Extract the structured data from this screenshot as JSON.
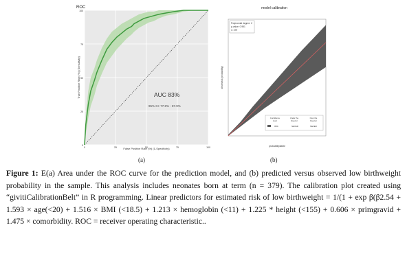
{
  "panel_a": {
    "label": "(a)",
    "title": "ROC",
    "xlabel": "False Positive Rate (%)     (1-Specificity)",
    "ylabel": "True Positive Rate (%)     (Sensitivity)",
    "auc_text": "AUC 83%",
    "ci_text": "95% CI: 77.8% - 87.9%",
    "colors": {
      "curve": "#3f9b3f",
      "band": "#b9dcae",
      "background": "#e9e9e9"
    }
  },
  "panel_b": {
    "label": "(b)",
    "title": "model calibration",
    "legend_lines": [
      "Polynomial degree: 2",
      "p-value: 0.951",
      "n: 379"
    ],
    "xlabel": "probabilityliable",
    "ylabel": "observed (probability)",
    "table_headers": [
      "Confidence\nlevel",
      "Under the\nbisector",
      "Over the\nbisector"
    ],
    "table_row": [
      "80%",
      "NEVER",
      "NEVER"
    ],
    "colors": {
      "belt": "#5a5a5a",
      "bisector": "#e06060"
    }
  },
  "chart_data": [
    {
      "type": "line",
      "title": "ROC",
      "xlabel": "False Positive Rate (%)     (1-Specificity)",
      "ylabel": "True Positive Rate (%)     (Sensitivity)",
      "x": [
        0,
        1,
        3,
        5,
        8,
        10,
        14,
        18,
        22,
        26,
        30,
        34,
        38,
        40,
        44,
        48,
        52,
        56,
        60,
        66,
        72,
        80,
        88,
        94,
        100
      ],
      "series": [
        {
          "values": [
            0,
            15,
            30,
            40,
            48,
            54,
            63,
            71,
            76,
            80,
            83,
            86,
            88,
            90,
            92,
            94,
            95,
            96,
            97,
            98,
            99,
            100,
            100,
            100,
            100
          ]
        }
      ],
      "band_upper": [
        0,
        22,
        40,
        50,
        57,
        63,
        72,
        79,
        84,
        87,
        90,
        92,
        94,
        95,
        97,
        98,
        99,
        99,
        100,
        100,
        100,
        100,
        100,
        100,
        100
      ],
      "band_lower": [
        0,
        8,
        20,
        29,
        37,
        44,
        53,
        61,
        66,
        71,
        75,
        79,
        82,
        84,
        87,
        89,
        91,
        92,
        94,
        96,
        97,
        99,
        100,
        100,
        100
      ],
      "xlim": [
        0,
        100
      ],
      "ylim": [
        0,
        100
      ],
      "xticks": [
        "0",
        "25",
        "50",
        "75",
        "100"
      ],
      "yticks": [
        "0",
        "25",
        "50",
        "75",
        "100"
      ],
      "grid": true
    },
    {
      "type": "area",
      "title": "model calibration",
      "x": [
        0.0,
        0.1,
        0.2,
        0.3,
        0.4,
        0.5,
        0.6,
        0.7,
        0.8
      ],
      "belt_upper": [
        0.01,
        0.12,
        0.25,
        0.37,
        0.49,
        0.61,
        0.73,
        0.84,
        0.95
      ],
      "belt_lower": [
        0.0,
        0.08,
        0.16,
        0.24,
        0.31,
        0.38,
        0.45,
        0.52,
        0.59
      ],
      "bisector": [
        [
          0,
          0
        ],
        [
          0.8,
          0.8
        ]
      ],
      "xlim": [
        0,
        0.8
      ],
      "ylim": [
        0,
        1
      ]
    }
  ],
  "caption": {
    "lead": "Figure 1:",
    "text": " E(a) Area under the ROC curve for the prediction model, and (b) predicted versus observed low birthweight probability in the sample. This analysis includes neonates born at term (n = 379). The calibration plot created using “givitiCalibrationBelt” in R programming. Linear predictors for estimated risk of low birthweight = 1/(1 + exp β(β2.54 + 1.593 × age(<20) + 1.516 × BMI (<18.5) + 1.213 × hemoglobin (<11) + 1.225 * height (<155) + 0.606 × primgravid + 1.475 × comorbidity. ROC = receiver operating characteristic.."
  }
}
